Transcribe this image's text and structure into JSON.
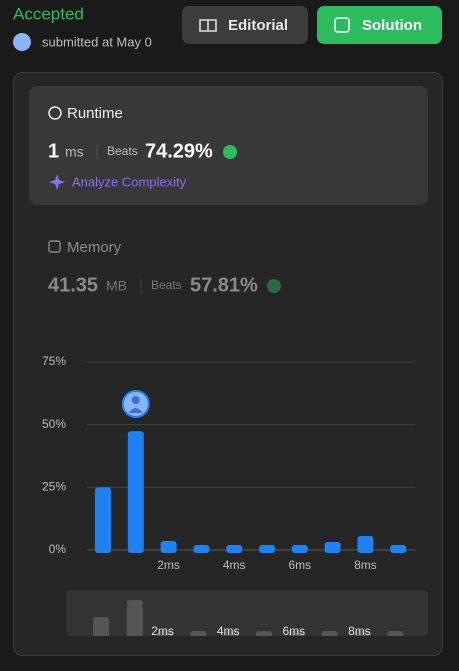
{
  "header": {
    "status": "Accepted",
    "submitted": "submitted at May 0",
    "editorial_button": "Editorial",
    "solution_button": "Solution"
  },
  "runtime": {
    "title": "Runtime",
    "value": "1",
    "unit": "ms",
    "beats_label": "Beats",
    "beats": "74.29%",
    "analyze": "Analyze Complexity"
  },
  "memory": {
    "title": "Memory",
    "value": "41.35",
    "unit": "MB",
    "beats_label": "Beats",
    "beats": "57.81%"
  },
  "chart_data": {
    "type": "bar",
    "categories": [
      null,
      null,
      "2ms",
      null,
      "4ms",
      null,
      "6ms",
      null,
      "8ms",
      null
    ],
    "values": [
      25,
      47.4,
      3.6,
      2,
      2,
      2,
      2,
      3.2,
      5.6,
      2
    ],
    "color": "#1e82f5",
    "ylim": [
      0,
      75
    ],
    "yticks": [
      {
        "value": 0,
        "label": "0%"
      },
      {
        "value": 25,
        "label": "25%"
      },
      {
        "value": 50,
        "label": "50%"
      },
      {
        "value": 75,
        "label": "75%"
      }
    ],
    "grid": true
  }
}
